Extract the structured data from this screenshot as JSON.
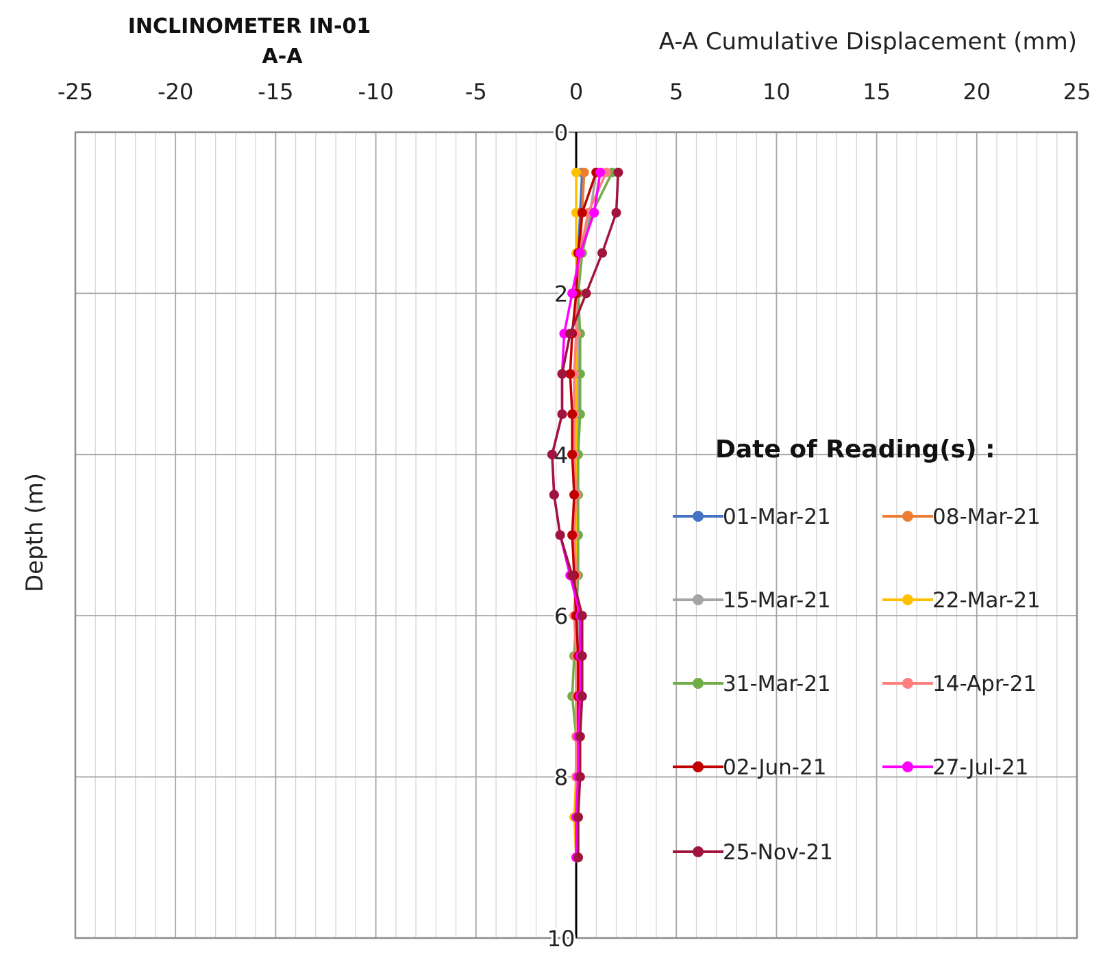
{
  "chart_data": {
    "type": "line",
    "title": "INCLINOMETER IN-01",
    "subtitle": "A-A",
    "xlabel": "A-A Cumulative Displacement (mm)",
    "ylabel": "Depth (m)",
    "xlim": [
      -25,
      25
    ],
    "ylim": [
      10,
      0
    ],
    "x_ticks": [
      "-25",
      "-20",
      "-15",
      "-10",
      "-5",
      "0",
      "5",
      "10",
      "15",
      "20",
      "25"
    ],
    "y_ticks": [
      "0",
      "2",
      "4",
      "6",
      "8",
      "10"
    ],
    "grid": true,
    "x_axis_position": "top",
    "legend_title": "Date of Reading(s) :",
    "legend_placement": "right",
    "series": [
      {
        "name": "01-Mar-21",
        "color": "#4472C4",
        "points": [
          [
            0.3,
            0.5
          ],
          [
            0.2,
            1.0
          ],
          [
            0.1,
            1.5
          ],
          [
            0.05,
            2.0
          ],
          [
            0.05,
            2.5
          ],
          [
            0.05,
            3.0
          ],
          [
            0.05,
            3.5
          ],
          [
            0.05,
            4.0
          ],
          [
            0.05,
            4.5
          ],
          [
            0.05,
            5.0
          ],
          [
            0.05,
            5.5
          ],
          [
            0.05,
            6.0
          ],
          [
            0.05,
            6.5
          ],
          [
            0.05,
            7.0
          ],
          [
            0.05,
            7.5
          ],
          [
            0.05,
            8.0
          ],
          [
            0.05,
            8.5
          ],
          [
            0.05,
            9.0
          ]
        ]
      },
      {
        "name": "08-Mar-21",
        "color": "#ED7D31",
        "points": [
          [
            0.4,
            0.5
          ],
          [
            0.3,
            1.0
          ],
          [
            0.2,
            1.5
          ],
          [
            0.1,
            2.0
          ],
          [
            0.1,
            2.5
          ],
          [
            0.1,
            3.0
          ],
          [
            0.1,
            3.5
          ],
          [
            0.0,
            4.0
          ],
          [
            0.0,
            4.5
          ],
          [
            0.0,
            5.0
          ],
          [
            0.0,
            5.5
          ],
          [
            0.05,
            6.0
          ],
          [
            0.05,
            6.5
          ],
          [
            0.05,
            7.0
          ],
          [
            0.05,
            7.5
          ],
          [
            0.05,
            8.0
          ],
          [
            0.05,
            8.5
          ],
          [
            0.05,
            9.0
          ]
        ]
      },
      {
        "name": "15-Mar-21",
        "color": "#A5A5A5",
        "points": [
          [
            1.0,
            0.5
          ],
          [
            0.7,
            1.0
          ],
          [
            0.3,
            1.5
          ],
          [
            0.1,
            2.0
          ],
          [
            0.1,
            2.5
          ],
          [
            0.1,
            3.0
          ],
          [
            0.1,
            3.5
          ],
          [
            0.0,
            4.0
          ],
          [
            0.0,
            4.5
          ],
          [
            0.0,
            5.0
          ],
          [
            0.0,
            5.5
          ],
          [
            0.1,
            6.0
          ],
          [
            0.1,
            6.5
          ],
          [
            0.0,
            7.0
          ],
          [
            0.1,
            7.5
          ],
          [
            0.1,
            8.0
          ],
          [
            0.1,
            8.5
          ],
          [
            0.1,
            9.0
          ]
        ]
      },
      {
        "name": "22-Mar-21",
        "color": "#FFC000",
        "points": [
          [
            0.0,
            0.5
          ],
          [
            0.0,
            1.0
          ],
          [
            0.0,
            1.5
          ],
          [
            0.0,
            2.0
          ],
          [
            0.0,
            2.5
          ],
          [
            0.0,
            3.0
          ],
          [
            0.0,
            3.5
          ],
          [
            0.0,
            4.0
          ],
          [
            0.0,
            4.5
          ],
          [
            0.0,
            5.0
          ],
          [
            0.0,
            5.5
          ],
          [
            0.0,
            6.0
          ],
          [
            0.0,
            6.5
          ],
          [
            0.0,
            7.0
          ],
          [
            0.0,
            7.5
          ],
          [
            0.0,
            8.0
          ],
          [
            -0.1,
            8.5
          ],
          [
            0.0,
            9.0
          ]
        ]
      },
      {
        "name": "31-Mar-21",
        "color": "#70AD47",
        "points": [
          [
            1.8,
            0.5
          ],
          [
            0.8,
            1.0
          ],
          [
            0.3,
            1.5
          ],
          [
            0.1,
            2.0
          ],
          [
            0.2,
            2.5
          ],
          [
            0.2,
            3.0
          ],
          [
            0.2,
            3.5
          ],
          [
            0.1,
            4.0
          ],
          [
            0.1,
            4.5
          ],
          [
            0.1,
            5.0
          ],
          [
            0.1,
            5.5
          ],
          [
            0.0,
            6.0
          ],
          [
            -0.1,
            6.5
          ],
          [
            -0.2,
            7.0
          ],
          [
            0.0,
            7.5
          ],
          [
            0.0,
            8.0
          ],
          [
            0.0,
            8.5
          ],
          [
            0.0,
            9.0
          ]
        ]
      },
      {
        "name": "14-Apr-21",
        "color": "#FF7F7F",
        "points": [
          [
            1.5,
            0.5
          ],
          [
            0.6,
            1.0
          ],
          [
            0.2,
            1.5
          ],
          [
            0.0,
            2.0
          ],
          [
            0.0,
            2.5
          ],
          [
            -0.1,
            3.0
          ],
          [
            -0.1,
            3.5
          ],
          [
            -0.1,
            4.0
          ],
          [
            0.0,
            4.5
          ],
          [
            -0.1,
            5.0
          ],
          [
            0.0,
            5.5
          ],
          [
            -0.1,
            6.0
          ],
          [
            0.0,
            6.5
          ],
          [
            0.0,
            7.0
          ],
          [
            0.0,
            7.5
          ],
          [
            0.0,
            8.0
          ],
          [
            0.0,
            8.5
          ],
          [
            0.0,
            9.0
          ]
        ]
      },
      {
        "name": "02-Jun-21",
        "color": "#C00000",
        "points": [
          [
            1.0,
            0.5
          ],
          [
            0.3,
            1.0
          ],
          [
            0.1,
            1.5
          ],
          [
            0.0,
            2.0
          ],
          [
            -0.2,
            2.5
          ],
          [
            -0.3,
            3.0
          ],
          [
            -0.2,
            3.5
          ],
          [
            -0.2,
            4.0
          ],
          [
            -0.1,
            4.5
          ],
          [
            -0.2,
            5.0
          ],
          [
            -0.1,
            5.5
          ],
          [
            0.0,
            6.0
          ],
          [
            0.1,
            6.5
          ],
          [
            0.1,
            7.0
          ],
          [
            0.1,
            7.5
          ],
          [
            0.1,
            8.0
          ],
          [
            0.1,
            8.5
          ],
          [
            0.1,
            9.0
          ]
        ]
      },
      {
        "name": "27-Jul-21",
        "color": "#FF00FF",
        "points": [
          [
            1.2,
            0.5
          ],
          [
            0.9,
            1.0
          ],
          [
            0.2,
            1.5
          ],
          [
            -0.2,
            2.0
          ],
          [
            -0.6,
            2.5
          ],
          [
            -0.7,
            3.0
          ],
          [
            -0.7,
            3.5
          ],
          [
            -1.2,
            4.0
          ],
          [
            -1.1,
            4.5
          ],
          [
            -0.8,
            5.0
          ],
          [
            -0.3,
            5.5
          ],
          [
            0.2,
            6.0
          ],
          [
            0.2,
            6.5
          ],
          [
            0.2,
            7.0
          ],
          [
            0.1,
            7.5
          ],
          [
            0.1,
            8.0
          ],
          [
            0.0,
            8.5
          ],
          [
            0.0,
            9.0
          ]
        ]
      },
      {
        "name": "25-Nov-21",
        "color": "#A0153E",
        "points": [
          [
            2.1,
            0.5
          ],
          [
            2.0,
            1.0
          ],
          [
            1.3,
            1.5
          ],
          [
            0.5,
            2.0
          ],
          [
            -0.3,
            2.5
          ],
          [
            -0.7,
            3.0
          ],
          [
            -0.7,
            3.5
          ],
          [
            -1.2,
            4.0
          ],
          [
            -1.1,
            4.5
          ],
          [
            -0.8,
            5.0
          ],
          [
            -0.2,
            5.5
          ],
          [
            0.3,
            6.0
          ],
          [
            0.3,
            6.5
          ],
          [
            0.3,
            7.0
          ],
          [
            0.2,
            7.5
          ],
          [
            0.2,
            8.0
          ],
          [
            0.1,
            8.5
          ],
          [
            0.1,
            9.0
          ]
        ]
      }
    ]
  }
}
